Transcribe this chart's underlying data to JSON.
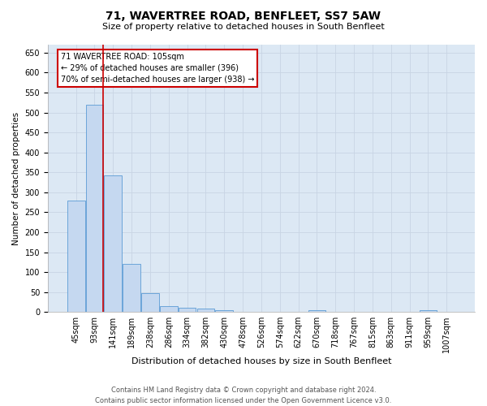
{
  "title": "71, WAVERTREE ROAD, BENFLEET, SS7 5AW",
  "subtitle": "Size of property relative to detached houses in South Benfleet",
  "xlabel": "Distribution of detached houses by size in South Benfleet",
  "ylabel": "Number of detached properties",
  "footer_line1": "Contains HM Land Registry data © Crown copyright and database right 2024.",
  "footer_line2": "Contains public sector information licensed under the Open Government Licence v3.0.",
  "bin_labels": [
    "45sqm",
    "93sqm",
    "141sqm",
    "189sqm",
    "238sqm",
    "286sqm",
    "334sqm",
    "382sqm",
    "430sqm",
    "478sqm",
    "526sqm",
    "574sqm",
    "622sqm",
    "670sqm",
    "718sqm",
    "767sqm",
    "815sqm",
    "863sqm",
    "911sqm",
    "959sqm",
    "1007sqm"
  ],
  "bar_values": [
    280,
    520,
    343,
    120,
    48,
    15,
    10,
    8,
    5,
    0,
    0,
    0,
    0,
    5,
    0,
    0,
    0,
    0,
    0,
    5,
    0
  ],
  "bar_color": "#c5d8f0",
  "bar_edge_color": "#5b9bd5",
  "red_line_x": 1.45,
  "ylim_max": 670,
  "yticks": [
    0,
    50,
    100,
    150,
    200,
    250,
    300,
    350,
    400,
    450,
    500,
    550,
    600,
    650
  ],
  "annotation_line1": "71 WAVERTREE ROAD: 105sqm",
  "annotation_line2": "← 29% of detached houses are smaller (396)",
  "annotation_line3": "70% of semi-detached houses are larger (938) →",
  "annotation_box_color": "#ffffff",
  "annotation_box_edge_color": "#cc0000",
  "property_line_color": "#cc0000",
  "grid_color": "#c8d4e4",
  "background_color": "#dce8f4",
  "title_fontsize": 10,
  "subtitle_fontsize": 8,
  "ylabel_fontsize": 7.5,
  "xlabel_fontsize": 8,
  "tick_fontsize": 7,
  "annotation_fontsize": 7,
  "footer_fontsize": 6
}
